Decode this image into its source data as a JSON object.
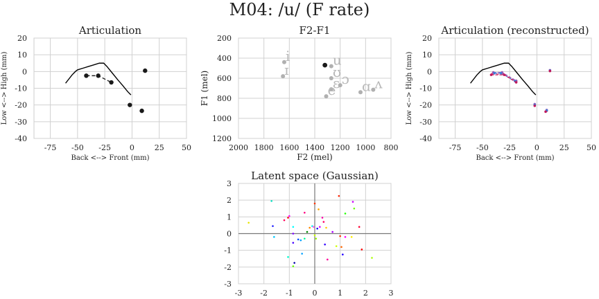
{
  "figure_title": "M04: /u/ (F rate)",
  "chart_data": [
    {
      "type": "line",
      "title": "Articulation",
      "xlabel": "Back <--> Front (mm)",
      "ylabel": "Low <--> High (mm)",
      "xlim": [
        -90,
        50
      ],
      "ylim": [
        -40,
        20
      ],
      "xticks": [
        -75,
        -50,
        -25,
        0,
        25,
        50
      ],
      "yticks": [
        -40,
        -30,
        -20,
        -10,
        0,
        10,
        20
      ],
      "grid": true,
      "palate": {
        "x": [
          -61,
          -55,
          -52,
          -50,
          -45,
          -40,
          -35,
          -30,
          -26,
          -23,
          -18,
          -13,
          -9,
          -4,
          -1
        ],
        "y": [
          -7,
          -2,
          0,
          1,
          2,
          3,
          4,
          5,
          5,
          3,
          -1,
          -5,
          -8,
          -12,
          -14
        ]
      },
      "points": {
        "x": [
          -42,
          -31,
          -19,
          -2,
          9,
          12
        ],
        "y": [
          -2.5,
          -2.5,
          -6.5,
          -20,
          -23.5,
          0.5
        ]
      },
      "dashed_segment": {
        "x": [
          -42,
          -31,
          -19
        ],
        "y": [
          -2.5,
          -2.5,
          -6.5
        ]
      }
    },
    {
      "type": "scatter",
      "title": "F2-F1",
      "xlabel": "F2 (mel)",
      "ylabel": "F1 (mel)",
      "xlim": [
        2000,
        800
      ],
      "ylim": [
        1200,
        200
      ],
      "xticks": [
        2000,
        1800,
        1600,
        1400,
        1200,
        1000,
        800
      ],
      "yticks": [
        200,
        400,
        600,
        800,
        1000,
        1200
      ],
      "grid": true,
      "vowels": [
        {
          "label": "i",
          "x": 1640,
          "y": 440
        },
        {
          "label": "ɪ",
          "x": 1650,
          "y": 580
        },
        {
          "label": "u",
          "x": 1270,
          "y": 480
        },
        {
          "label": "ʊ",
          "x": 1270,
          "y": 600
        },
        {
          "label": "ɔ",
          "x": 1200,
          "y": 670
        },
        {
          "label": "ɛ",
          "x": 1270,
          "y": 710
        },
        {
          "label": "e",
          "x": 1310,
          "y": 780
        },
        {
          "label": "ɑ",
          "x": 1040,
          "y": 740
        },
        {
          "label": "ʌ",
          "x": 940,
          "y": 715
        }
      ],
      "highlight": {
        "x": 1320,
        "y": 470
      }
    },
    {
      "type": "line",
      "title": "Articulation (reconstructed)",
      "xlabel": "Back <--> Front (mm)",
      "ylabel": "Low <--> High (mm)",
      "xlim": [
        -90,
        50
      ],
      "ylim": [
        -40,
        20
      ],
      "xticks": [
        -75,
        -50,
        -25,
        0,
        25,
        50
      ],
      "yticks": [
        -40,
        -30,
        -20,
        -10,
        0,
        10,
        20
      ],
      "grid": true,
      "palate": {
        "x": [
          -61,
          -55,
          -52,
          -50,
          -45,
          -40,
          -35,
          -30,
          -26,
          -23,
          -18,
          -13,
          -9,
          -4,
          -1
        ],
        "y": [
          -7,
          -2,
          0,
          1,
          2,
          3,
          4,
          5,
          5,
          3,
          -1,
          -5,
          -8,
          -12,
          -14
        ]
      },
      "traces": [
        {
          "color": "#e0457b",
          "x": [
            -41,
            -31,
            -19,
            -2,
            9,
            12
          ],
          "y": [
            -1.5,
            -1.5,
            -6,
            -20,
            -23.5,
            0.5
          ]
        },
        {
          "color": "#9b59b6",
          "x": [
            -40,
            -32,
            -19,
            -2,
            9,
            12
          ],
          "y": [
            -0.5,
            -0.5,
            -5.5,
            -19.5,
            -23,
            0.8
          ]
        },
        {
          "color": "#3b7dd8",
          "x": [
            -39,
            -33,
            -20,
            -2,
            9,
            12
          ],
          "y": [
            -1,
            -1,
            -5.8,
            -20,
            -23.3,
            0.6
          ]
        },
        {
          "color": "#c2185b",
          "x": [
            -42,
            -30,
            -19,
            -2,
            8,
            12
          ],
          "y": [
            -2,
            -2,
            -6.5,
            -20.5,
            -24,
            0.3
          ]
        }
      ]
    },
    {
      "type": "scatter",
      "title": "Latent space (Gaussian)",
      "xlim": [
        -3,
        3
      ],
      "ylim": [
        -3,
        3
      ],
      "xticks": [
        -3,
        -2,
        -1,
        0,
        1,
        2,
        3
      ],
      "yticks": [
        -3,
        -2,
        -1,
        0,
        1,
        2,
        3
      ],
      "grid": true,
      "axes_lines": true,
      "points": [
        {
          "x": -2.6,
          "y": 0.65,
          "c": "#e6e600"
        },
        {
          "x": -1.7,
          "y": 1.95,
          "c": "#00e0c0"
        },
        {
          "x": -1.65,
          "y": 0.45,
          "c": "#1a1aff"
        },
        {
          "x": -1.6,
          "y": -0.2,
          "c": "#00c8ff"
        },
        {
          "x": -1.2,
          "y": 0.8,
          "c": "#ff0055"
        },
        {
          "x": -1.05,
          "y": 0.95,
          "c": "#ff0000"
        },
        {
          "x": -1.0,
          "y": 1.05,
          "c": "#ff00ff"
        },
        {
          "x": -1.05,
          "y": -1.4,
          "c": "#00ffd0"
        },
        {
          "x": -0.85,
          "y": 0.0,
          "c": "#8000ff"
        },
        {
          "x": -0.85,
          "y": -0.55,
          "c": "#4400ff"
        },
        {
          "x": -0.8,
          "y": -1.75,
          "c": "#0000aa"
        },
        {
          "x": -0.85,
          "y": -1.95,
          "c": "#66ff00"
        },
        {
          "x": -0.85,
          "y": 0.4,
          "c": "#00ffff"
        },
        {
          "x": -0.65,
          "y": -0.35,
          "c": "#0055ff"
        },
        {
          "x": -0.55,
          "y": -0.4,
          "c": "#00a0ff"
        },
        {
          "x": -0.5,
          "y": -1.2,
          "c": "#00a0ff"
        },
        {
          "x": -0.4,
          "y": -0.3,
          "c": "#00ff99"
        },
        {
          "x": -0.4,
          "y": 1.25,
          "c": "#ff0080"
        },
        {
          "x": -0.3,
          "y": 0.1,
          "c": "#008800"
        },
        {
          "x": -0.2,
          "y": 0.35,
          "c": "#ff8800"
        },
        {
          "x": -0.1,
          "y": 0.45,
          "c": "#00ffee"
        },
        {
          "x": -0.05,
          "y": 0.4,
          "c": "#ff55ff"
        },
        {
          "x": 0.0,
          "y": 1.8,
          "c": "#ff3300"
        },
        {
          "x": 0.0,
          "y": -0.1,
          "c": "#ccff00"
        },
        {
          "x": 0.05,
          "y": -0.3,
          "c": "#99ff00"
        },
        {
          "x": 0.1,
          "y": 0.3,
          "c": "#0000ff"
        },
        {
          "x": 0.15,
          "y": 1.45,
          "c": "#ffaa00"
        },
        {
          "x": 0.2,
          "y": 0.4,
          "c": "#e000ff"
        },
        {
          "x": 0.3,
          "y": 0.95,
          "c": "#ff00aa"
        },
        {
          "x": 0.35,
          "y": 0.7,
          "c": "#ff0066"
        },
        {
          "x": 0.4,
          "y": -0.65,
          "c": "#3300ff"
        },
        {
          "x": 0.45,
          "y": 0.35,
          "c": "#ffcc00"
        },
        {
          "x": 0.5,
          "y": -1.55,
          "c": "#ff0099"
        },
        {
          "x": 0.7,
          "y": 0.1,
          "c": "#aa00ff"
        },
        {
          "x": 0.85,
          "y": -0.75,
          "c": "#ccff00"
        },
        {
          "x": 0.95,
          "y": 2.25,
          "c": "#ff2200"
        },
        {
          "x": 1.0,
          "y": -0.15,
          "c": "#ff3300"
        },
        {
          "x": 1.05,
          "y": -0.8,
          "c": "#ff6600"
        },
        {
          "x": 1.1,
          "y": -1.25,
          "c": "#2200ff"
        },
        {
          "x": 1.2,
          "y": -0.2,
          "c": "#ff00ff"
        },
        {
          "x": 1.2,
          "y": 1.2,
          "c": "#22ff00"
        },
        {
          "x": 1.5,
          "y": 1.9,
          "c": "#cc00ff"
        },
        {
          "x": 1.55,
          "y": 1.5,
          "c": "#66ff00"
        },
        {
          "x": 1.45,
          "y": -0.2,
          "c": "#ffee00"
        },
        {
          "x": 1.75,
          "y": 0.4,
          "c": "#ff0033"
        },
        {
          "x": 1.85,
          "y": -0.95,
          "c": "#ff0000"
        },
        {
          "x": 2.25,
          "y": -1.45,
          "c": "#aaff00"
        }
      ]
    }
  ]
}
